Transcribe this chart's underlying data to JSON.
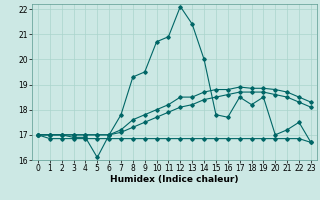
{
  "xlabel": "Humidex (Indice chaleur)",
  "bg_color": "#cce8e4",
  "grid_color": "#aad4cc",
  "line_color": "#006666",
  "xlim": [
    -0.5,
    23.5
  ],
  "ylim": [
    16,
    22.2
  ],
  "xticks": [
    0,
    1,
    2,
    3,
    4,
    5,
    6,
    7,
    8,
    9,
    10,
    11,
    12,
    13,
    14,
    15,
    16,
    17,
    18,
    19,
    20,
    21,
    22,
    23
  ],
  "yticks": [
    16,
    17,
    18,
    19,
    20,
    21,
    22
  ],
  "line1_x": [
    0,
    1,
    2,
    3,
    4,
    5,
    6,
    7,
    8,
    9,
    10,
    11,
    12,
    13,
    14,
    15,
    16,
    17,
    18,
    19,
    20,
    21,
    22,
    23
  ],
  "line1_y": [
    17.0,
    17.0,
    17.0,
    16.9,
    16.9,
    16.1,
    17.0,
    17.8,
    19.3,
    19.5,
    20.7,
    20.9,
    22.1,
    21.4,
    20.0,
    17.8,
    17.7,
    18.5,
    18.2,
    18.5,
    17.0,
    17.2,
    17.5,
    16.7
  ],
  "line2_x": [
    0,
    1,
    2,
    3,
    4,
    5,
    6,
    7,
    8,
    9,
    10,
    11,
    12,
    13,
    14,
    15,
    16,
    17,
    18,
    19,
    20,
    21,
    22,
    23
  ],
  "line2_y": [
    17.0,
    17.0,
    17.0,
    17.0,
    17.0,
    17.0,
    17.0,
    17.2,
    17.6,
    17.8,
    18.0,
    18.2,
    18.5,
    18.5,
    18.7,
    18.8,
    18.8,
    18.9,
    18.85,
    18.85,
    18.8,
    18.7,
    18.5,
    18.3
  ],
  "line3_x": [
    0,
    1,
    2,
    3,
    4,
    5,
    6,
    7,
    8,
    9,
    10,
    11,
    12,
    13,
    14,
    15,
    16,
    17,
    18,
    19,
    20,
    21,
    22,
    23
  ],
  "line3_y": [
    17.0,
    17.0,
    17.0,
    17.0,
    17.0,
    17.0,
    17.0,
    17.1,
    17.3,
    17.5,
    17.7,
    17.9,
    18.1,
    18.2,
    18.4,
    18.5,
    18.6,
    18.7,
    18.7,
    18.7,
    18.6,
    18.5,
    18.3,
    18.1
  ],
  "line4_x": [
    0,
    1,
    2,
    3,
    4,
    5,
    6,
    7,
    8,
    9,
    10,
    11,
    12,
    13,
    14,
    15,
    16,
    17,
    18,
    19,
    20,
    21,
    22,
    23
  ],
  "line4_y": [
    17.0,
    16.85,
    16.85,
    16.85,
    16.85,
    16.85,
    16.85,
    16.85,
    16.85,
    16.85,
    16.85,
    16.85,
    16.85,
    16.85,
    16.85,
    16.85,
    16.85,
    16.85,
    16.85,
    16.85,
    16.85,
    16.85,
    16.85,
    16.7
  ]
}
